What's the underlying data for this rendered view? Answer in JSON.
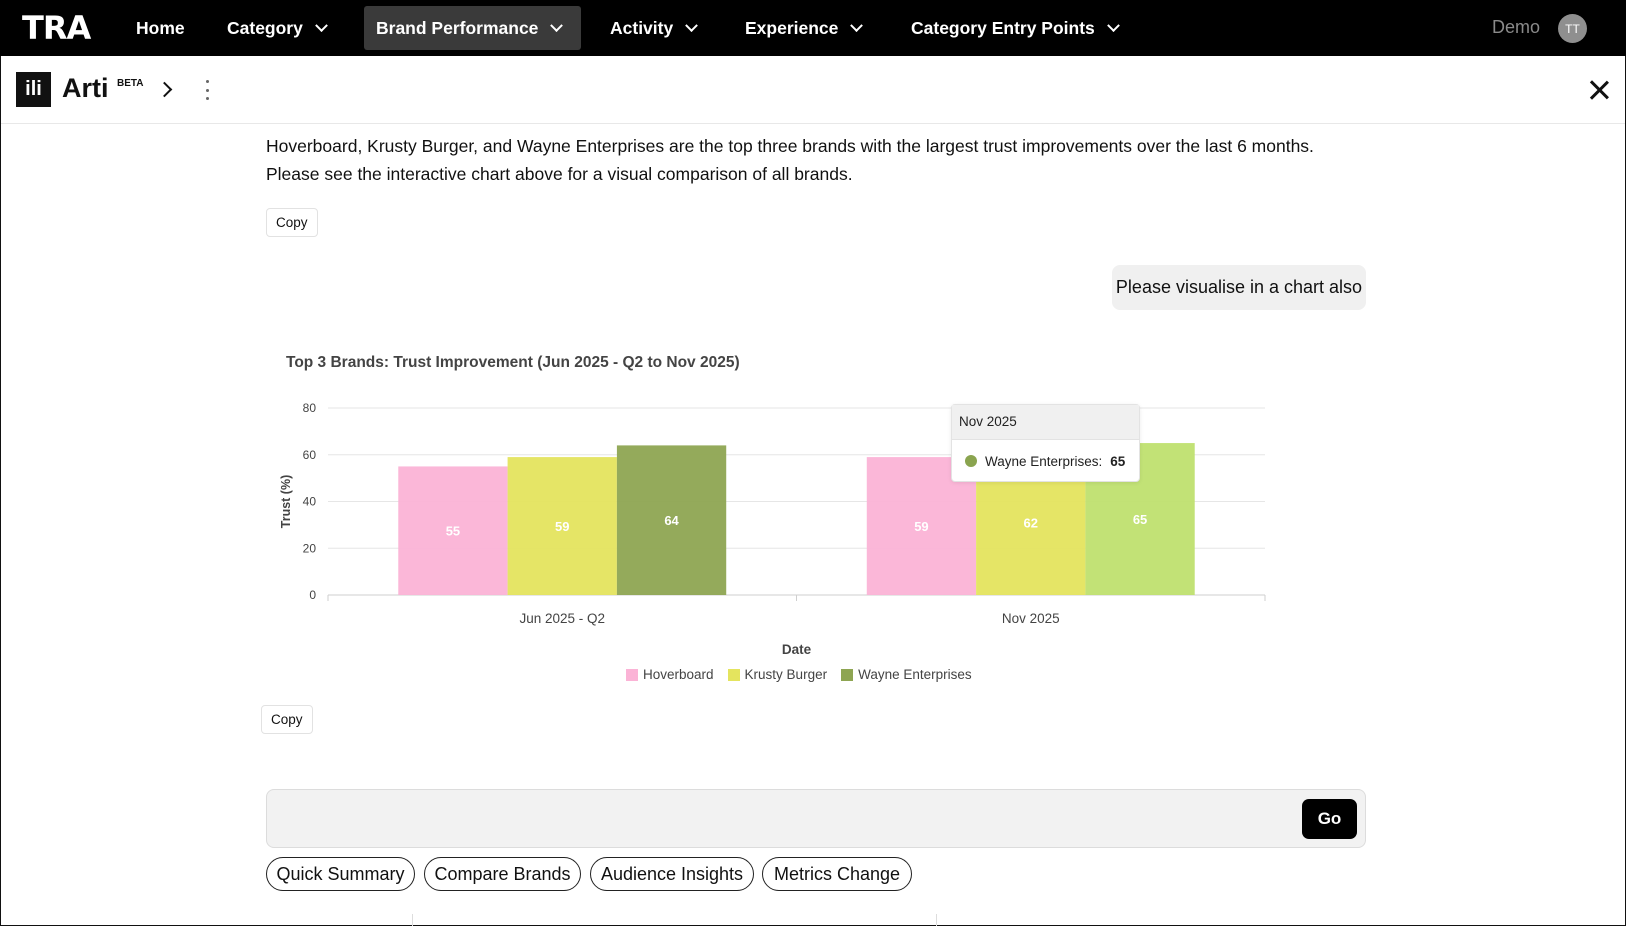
{
  "topnav": {
    "logo": "TRA",
    "items": [
      {
        "label": "Home"
      },
      {
        "label": "Category"
      },
      {
        "label": "Brand Performance"
      },
      {
        "label": "Activity"
      },
      {
        "label": "Experience"
      },
      {
        "label": "Category Entry Points"
      }
    ],
    "user_label": "Demo",
    "avatar_initials": "TT"
  },
  "panel": {
    "logo_glyph": "ili",
    "name": "Arti",
    "badge": "BETA"
  },
  "messages": {
    "assistant_text": "Hoverboard, Krusty Burger, and Wayne Enterprises are the top three brands with the largest trust improvements over the last 6 months. Please see the interactive chart above for a visual comparison of all brands.",
    "copy_label": "Copy",
    "user_text": "Please visualise in a chart also"
  },
  "chart_data": {
    "type": "bar",
    "title": "Top 3 Brands: Trust Improvement (Jun 2025 - Q2 to Nov 2025)",
    "xlabel": "Date",
    "ylabel": "Trust (%)",
    "categories": [
      "Jun 2025 - Q2",
      "Nov 2025"
    ],
    "ylim": [
      0,
      80
    ],
    "yticks": [
      "0",
      "20",
      "40",
      "60",
      "80"
    ],
    "grid": true,
    "legend_position": "bottom",
    "series": [
      {
        "name": "Hoverboard",
        "values": [
          55,
          59
        ],
        "color": "#fbb3d6"
      },
      {
        "name": "Krusty Burger",
        "values": [
          59,
          62
        ],
        "color": "#e4e45e"
      },
      {
        "name": "Wayne Enterprises",
        "values": [
          64,
          65
        ],
        "color": "#8ea552",
        "highlight_color": "#bfe06f"
      }
    ],
    "tooltip": {
      "title": "Nov 2025",
      "series": "Wayne Enterprises:",
      "value": "65"
    }
  },
  "composer": {
    "placeholder": "",
    "go_label": "Go"
  },
  "suggestions": [
    {
      "label": "Quick Summary"
    },
    {
      "label": "Compare Brands"
    },
    {
      "label": "Audience Insights"
    },
    {
      "label": "Metrics Change"
    }
  ]
}
